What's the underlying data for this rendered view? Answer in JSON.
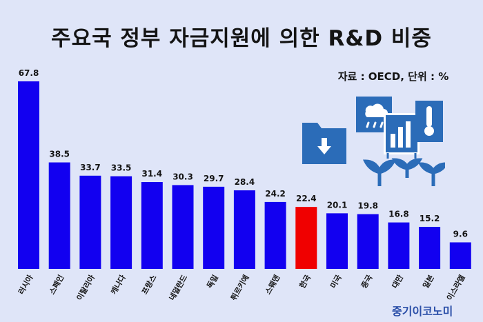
{
  "header": {
    "title": "주요국 정부 자금지원에 의한 R&D 비중",
    "source_note": "자료 : OECD, 단위 : %"
  },
  "footer": {
    "publisher": "중기이코노미"
  },
  "colors": {
    "background": "#dfe5f8",
    "bar": "#1200f0",
    "highlight_bar": "#f00000",
    "icon": "#2b6cb8"
  },
  "icons": [
    "folder-download-icon",
    "cloud-rain-icon",
    "bar-chart-icon",
    "thermometer-icon",
    "sprout-icon"
  ],
  "chart_data": {
    "type": "bar",
    "title": "주요국 정부 자금지원에 의한 R&D 비중",
    "categories": [
      "러시아",
      "스페인",
      "이탈리아",
      "캐나다",
      "프랑스",
      "네덜란드",
      "독일",
      "튀르키예",
      "스웨덴",
      "한국",
      "미국",
      "중국",
      "대만",
      "일본",
      "이스라엘"
    ],
    "values": [
      67.8,
      38.5,
      33.7,
      33.5,
      31.4,
      30.3,
      29.7,
      28.4,
      24.2,
      22.4,
      20.1,
      19.8,
      16.8,
      15.2,
      9.6
    ],
    "highlight": "한국",
    "ylim": [
      0,
      67.8
    ],
    "grid": false,
    "legend": "none"
  }
}
